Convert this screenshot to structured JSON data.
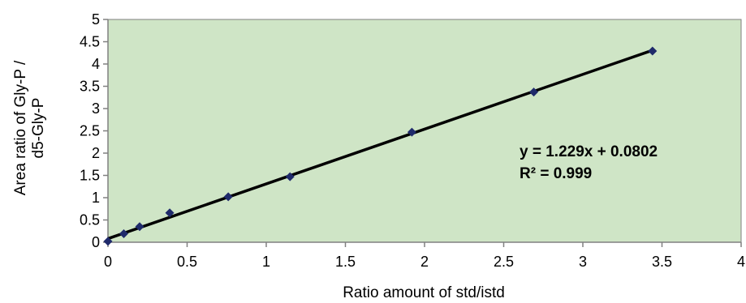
{
  "chart_data": {
    "type": "scatter",
    "title": "",
    "xlabel": "Ratio amount of std/istd",
    "ylabel_lines": [
      "Area ratio of Gly-P /",
      "d5-Gly-P"
    ],
    "xlim": [
      0,
      4
    ],
    "ylim": [
      0,
      5
    ],
    "x_ticks": [
      "0",
      "0.5",
      "1",
      "1.5",
      "2",
      "2.5",
      "3",
      "3.5",
      "4"
    ],
    "y_ticks": [
      "0",
      "0.5",
      "1",
      "1.5",
      "2",
      "2.5",
      "3",
      "3.5",
      "4",
      "4.5",
      "5"
    ],
    "grid": false,
    "plot_background": "#cfe5c6",
    "marker_color": "#1f2a6b",
    "trendline_color": "#000000",
    "points": [
      {
        "x": 0.0,
        "y": 0.02
      },
      {
        "x": 0.1,
        "y": 0.19
      },
      {
        "x": 0.2,
        "y": 0.35
      },
      {
        "x": 0.39,
        "y": 0.66
      },
      {
        "x": 0.76,
        "y": 1.02
      },
      {
        "x": 1.15,
        "y": 1.47
      },
      {
        "x": 1.92,
        "y": 2.47
      },
      {
        "x": 2.69,
        "y": 3.37
      },
      {
        "x": 3.44,
        "y": 4.29
      }
    ],
    "trendline": {
      "slope": 1.229,
      "intercept": 0.0802,
      "x_range": [
        0,
        3.44
      ]
    },
    "annotations": {
      "equation": "y = 1.229x + 0.0802",
      "r_squared": "R² = 0.999"
    }
  }
}
